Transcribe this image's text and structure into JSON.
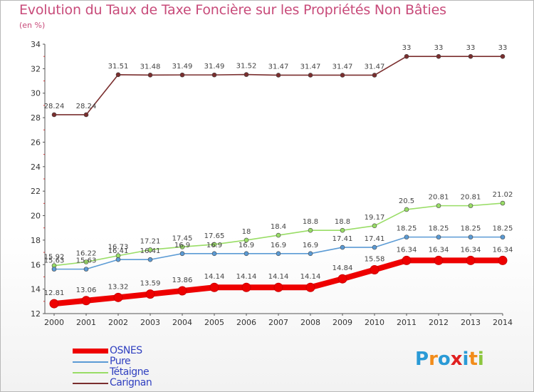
{
  "title": "Evolution du Taux de Taxe Foncière sur les Propriétés Non Bâties",
  "subtitle": "(en %)",
  "logo": {
    "text": "Proxiti",
    "colors": [
      "#2a9ad6",
      "#f28c1a",
      "#2a9ad6",
      "#e02020",
      "#2a9ad6",
      "#f28c1a",
      "#8cc63e"
    ]
  },
  "chart_data": {
    "type": "line",
    "title": "Evolution du Taux de Taxe Foncière sur les Propriétés Non Bâties",
    "ylabel": "(en %)",
    "x": [
      "2000",
      "2001",
      "2002",
      "2003",
      "2004",
      "2005",
      "2006",
      "2007",
      "2008",
      "2009",
      "2010",
      "2011",
      "2012",
      "2013",
      "2014"
    ],
    "ylim": [
      12,
      34
    ],
    "yticks": [
      12,
      14,
      16,
      18,
      20,
      22,
      24,
      26,
      28,
      30,
      32,
      34
    ],
    "grid": false,
    "legend": "bottom-left",
    "series": [
      {
        "name": "OSNES",
        "color": "#ee0000",
        "bold": true,
        "values": [
          12.81,
          13.06,
          13.32,
          13.59,
          13.86,
          14.14,
          14.14,
          14.14,
          14.14,
          14.84,
          15.58,
          16.34,
          16.34,
          16.34,
          16.34
        ],
        "labels": [
          "12.81",
          "13.06",
          "13.32",
          "13.59",
          "13.86",
          "14.14",
          "14.14",
          "14.14",
          "14.14",
          "14.84",
          "15.58",
          "16.34",
          "16.34",
          "16.34",
          "16.34"
        ]
      },
      {
        "name": "Pure",
        "color": "#5b9bd5",
        "bold": false,
        "values": [
          15.63,
          15.63,
          16.41,
          16.41,
          16.9,
          16.9,
          16.9,
          16.9,
          16.9,
          17.41,
          17.41,
          18.25,
          18.25,
          18.25,
          18.25
        ],
        "labels": [
          "15.63",
          "15.63",
          "16.41",
          "16.41",
          "16.9",
          "16.9",
          "16.9",
          "16.9",
          "16.9",
          "17.41",
          "17.41",
          "18.25",
          "18.25",
          "18.25",
          "18.25"
        ]
      },
      {
        "name": "Tétaigne",
        "color": "#99dd66",
        "bold": false,
        "values": [
          15.92,
          16.22,
          16.73,
          17.21,
          17.45,
          17.65,
          18,
          18.4,
          18.8,
          18.8,
          19.17,
          20.5,
          20.81,
          20.81,
          21.02
        ],
        "labels": [
          "15.92",
          "16.22",
          "16.73",
          "17.21",
          "17.45",
          "17.65",
          "18",
          "18.4",
          "18.8",
          "18.8",
          "19.17",
          "20.5",
          "20.81",
          "20.81",
          "21.02"
        ]
      },
      {
        "name": "Carignan",
        "color": "#7a2e2e",
        "bold": false,
        "values": [
          28.24,
          28.24,
          31.51,
          31.48,
          31.49,
          31.49,
          31.52,
          31.47,
          31.47,
          31.47,
          31.47,
          33,
          33,
          33,
          33
        ],
        "labels": [
          "28.24",
          "28.24",
          "31.51",
          "31.48",
          "31.49",
          "31.49",
          "31.52",
          "31.47",
          "31.47",
          "31.47",
          "31.47",
          "33",
          "33",
          "33",
          "33"
        ]
      }
    ]
  }
}
